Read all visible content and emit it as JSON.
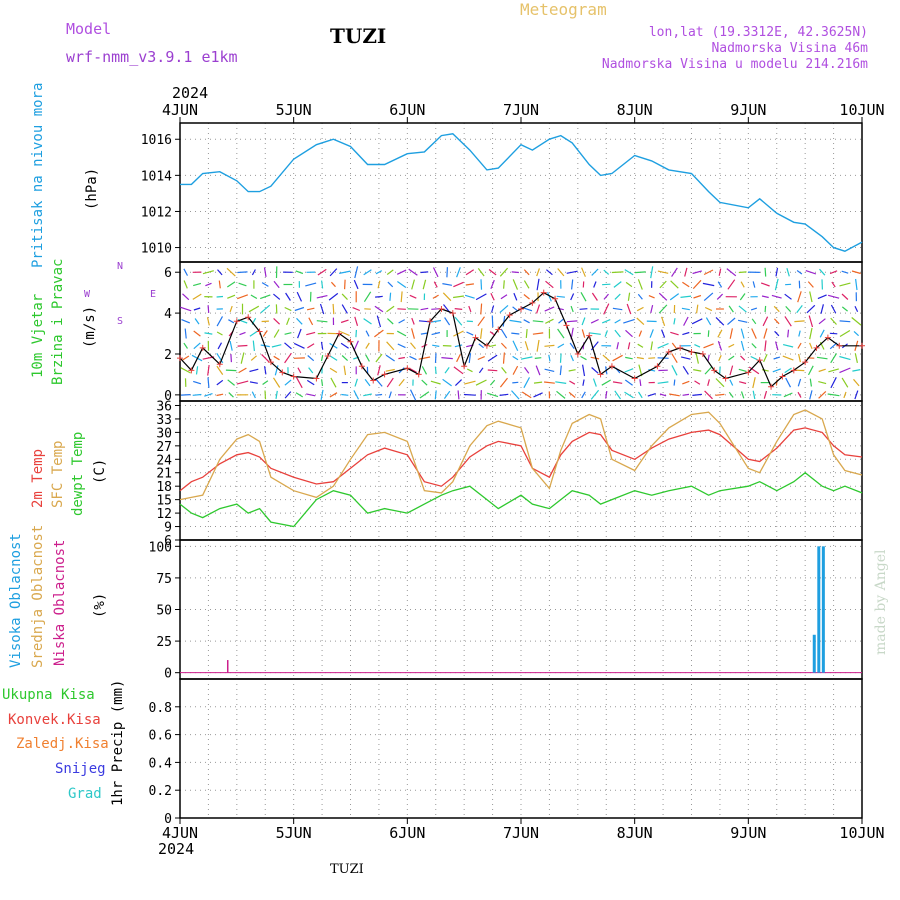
{
  "header": {
    "model_label": "Model",
    "model_name": "wrf-nmm_v3.9.1 e1km",
    "station": "TUZI",
    "title": "Meteogram",
    "coords": "lon,lat (19.3312E, 42.3625N)",
    "elevation": "Nadmorska Visina 46m",
    "model_elevation": "Nadmorska Visina u modelu 214.216m",
    "year_top": "2024"
  },
  "footer": {
    "station": "TUZI",
    "year_bottom": "2024",
    "watermark": "made by Angel"
  },
  "colors": {
    "pressure": "#1e9fe0",
    "temp2m": "#e8413c",
    "sfc_temp": "#d9a84e",
    "dewpt": "#2ec82e",
    "high_cloud": "#1e9fe0",
    "mid_cloud": "#d9a84e",
    "low_cloud": "#cc1f8c",
    "violet": "#9b3fd0",
    "model_label": "#b04fe0",
    "title_gold": "#e6c26a"
  },
  "x_labels": [
    "4JUN",
    "5JUN",
    "6JUN",
    "7JUN",
    "8JUN",
    "9JUN",
    "10JUN"
  ],
  "panels": {
    "pressure": {
      "label1": "Pritisak na nivou mora",
      "label2": "(hPa)"
    },
    "wind": {
      "label1": "10m Vjetar",
      "label2": "Brzina i Pravac",
      "label3": "(m/s)",
      "compass_n": "N",
      "compass_s": "S",
      "compass_w": "W",
      "compass_e": "E"
    },
    "temp": {
      "label1": "2m Temp",
      "label2": "SFC Temp",
      "label3": "dewpt Temp",
      "label4": "(C)"
    },
    "cloud": {
      "label1": "Visoka Oblacnost",
      "label2": "Srednja Oblacnost",
      "label3": "Niska Oblacnost",
      "label4": "(%)"
    },
    "precip": {
      "label1": "Ukupna Kisa",
      "label2": "Konvek.Kisa",
      "label3": "Zaledj.Kisa",
      "label4": "Snijeg",
      "label5": "Grad",
      "label6": "1hr Precip (mm)"
    }
  },
  "chart_data": [
    {
      "type": "line",
      "name": "pressure",
      "x": [
        4.0,
        4.1,
        4.2,
        4.35,
        4.5,
        4.6,
        4.7,
        4.8,
        5.0,
        5.2,
        5.35,
        5.5,
        5.65,
        5.8,
        6.0,
        6.15,
        6.3,
        6.4,
        6.55,
        6.7,
        6.8,
        7.0,
        7.1,
        7.25,
        7.35,
        7.45,
        7.6,
        7.7,
        7.8,
        8.0,
        8.15,
        8.3,
        8.5,
        8.65,
        8.75,
        9.0,
        9.1,
        9.25,
        9.4,
        9.5,
        9.65,
        9.75,
        9.85,
        10.0
      ],
      "values": [
        1013.5,
        1013.5,
        1014.1,
        1014.2,
        1013.7,
        1013.1,
        1013.1,
        1013.4,
        1014.9,
        1015.7,
        1016.0,
        1015.6,
        1014.6,
        1014.6,
        1015.2,
        1015.3,
        1016.2,
        1016.3,
        1015.4,
        1014.3,
        1014.4,
        1015.7,
        1015.4,
        1016.0,
        1016.2,
        1015.8,
        1014.6,
        1014.0,
        1014.1,
        1015.1,
        1014.8,
        1014.3,
        1014.1,
        1013.1,
        1012.5,
        1012.2,
        1012.7,
        1011.9,
        1011.4,
        1011.3,
        1010.6,
        1010.0,
        1009.8,
        1010.3
      ],
      "ylim": [
        1009.2,
        1016.9
      ],
      "yticks": [
        1010,
        1012,
        1014,
        1016
      ]
    },
    {
      "type": "line",
      "name": "wind_speed",
      "x": [
        4.0,
        4.1,
        4.2,
        4.35,
        4.5,
        4.6,
        4.7,
        4.8,
        4.9,
        5.0,
        5.2,
        5.3,
        5.4,
        5.5,
        5.6,
        5.7,
        5.8,
        6.0,
        6.1,
        6.2,
        6.3,
        6.4,
        6.5,
        6.6,
        6.7,
        6.8,
        6.9,
        7.0,
        7.1,
        7.2,
        7.3,
        7.4,
        7.5,
        7.6,
        7.7,
        7.8,
        8.0,
        8.2,
        8.3,
        8.4,
        8.5,
        8.6,
        8.7,
        8.8,
        9.0,
        9.1,
        9.2,
        9.3,
        9.4,
        9.5,
        9.6,
        9.7,
        9.8,
        10.0
      ],
      "values": [
        1.8,
        1.2,
        2.3,
        1.5,
        3.6,
        3.8,
        3.1,
        1.6,
        1.1,
        0.9,
        0.8,
        1.9,
        3.0,
        2.6,
        1.4,
        0.7,
        1.0,
        1.3,
        1.0,
        3.6,
        4.2,
        4.0,
        1.4,
        2.8,
        2.4,
        3.2,
        3.9,
        4.2,
        4.5,
        5.0,
        4.7,
        3.4,
        2.0,
        2.9,
        1.0,
        1.4,
        0.8,
        1.4,
        2.1,
        2.3,
        2.1,
        2.0,
        1.2,
        0.8,
        1.1,
        1.7,
        0.4,
        0.9,
        1.2,
        1.6,
        2.3,
        2.8,
        2.4,
        2.4
      ],
      "ylim": [
        -0.3,
        6.5
      ],
      "yticks": [
        0,
        2,
        4,
        6
      ]
    },
    {
      "type": "line",
      "name": "temperatures",
      "x": [
        4.0,
        4.1,
        4.2,
        4.35,
        4.5,
        4.6,
        4.7,
        4.8,
        5.0,
        5.2,
        5.35,
        5.5,
        5.65,
        5.8,
        6.0,
        6.15,
        6.3,
        6.4,
        6.55,
        6.7,
        6.8,
        7.0,
        7.1,
        7.25,
        7.35,
        7.45,
        7.6,
        7.7,
        7.8,
        8.0,
        8.15,
        8.3,
        8.5,
        8.65,
        8.75,
        9.0,
        9.1,
        9.25,
        9.4,
        9.5,
        9.65,
        9.75,
        9.85,
        10.0
      ],
      "series": [
        {
          "name": "2m Temp",
          "values": [
            17,
            19,
            20,
            23,
            25,
            25.5,
            24.5,
            22,
            20,
            18.5,
            19,
            22,
            25,
            26.5,
            25,
            19,
            18,
            20,
            24.5,
            27,
            28,
            27,
            22,
            20,
            25,
            28,
            30,
            29.5,
            26,
            24,
            26.5,
            28.5,
            30,
            30.5,
            29.5,
            24,
            23.5,
            26.5,
            30.5,
            31,
            30,
            27,
            25,
            24.5
          ]
        },
        {
          "name": "SFC Temp",
          "values": [
            15,
            15.5,
            16,
            24,
            28.5,
            29.5,
            28,
            20,
            17,
            15.5,
            18,
            24,
            29.5,
            30,
            28,
            17,
            16.5,
            19,
            27,
            31.5,
            32.5,
            31,
            22,
            17.5,
            26,
            32,
            34,
            33,
            24,
            21.5,
            27,
            31,
            34,
            34.5,
            32,
            22,
            21,
            28,
            34,
            35,
            33,
            25,
            21.5,
            20.5
          ]
        },
        {
          "name": "dewpt Temp",
          "values": [
            14,
            12,
            11,
            13,
            14,
            12,
            13,
            10,
            9,
            15,
            17,
            16,
            12,
            13,
            12,
            14,
            16,
            17,
            18,
            15,
            13,
            16,
            14,
            13,
            15,
            17,
            16,
            14,
            15,
            17,
            16,
            17,
            18,
            16,
            17,
            18,
            19,
            17,
            19,
            21,
            18,
            17,
            18,
            16.5
          ]
        }
      ],
      "ylim": [
        6,
        37
      ],
      "yticks": [
        6,
        9,
        12,
        15,
        18,
        21,
        24,
        27,
        30,
        33,
        36
      ]
    },
    {
      "type": "bar",
      "name": "cloud_cover",
      "series": [
        {
          "name": "Visoka Oblacnost",
          "x": [
            9.58,
            9.62,
            9.66
          ],
          "values": [
            30,
            100,
            100
          ]
        },
        {
          "name": "Niska Oblacnost",
          "x": [
            4.42
          ],
          "values": [
            10
          ]
        }
      ],
      "ylim": [
        -5,
        105
      ],
      "yticks": [
        0,
        25,
        50,
        75,
        100
      ]
    },
    {
      "type": "bar",
      "name": "precip",
      "series": [],
      "ylim": [
        0,
        1.0
      ],
      "yticks": [
        0,
        0.2,
        0.4,
        0.6,
        0.8
      ]
    }
  ]
}
